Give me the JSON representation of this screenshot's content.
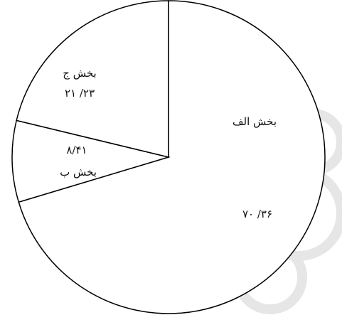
{
  "chart_data": {
    "type": "pie",
    "categories": [
      "بخش الف",
      "بخش ب",
      "بخش ج"
    ],
    "values": [
      70.36,
      8.41,
      21.23
    ],
    "value_labels": [
      "۷۰ /۳۶",
      "۸/۴۱",
      "۲۱ /۲۳"
    ],
    "color": "#ffffff"
  }
}
